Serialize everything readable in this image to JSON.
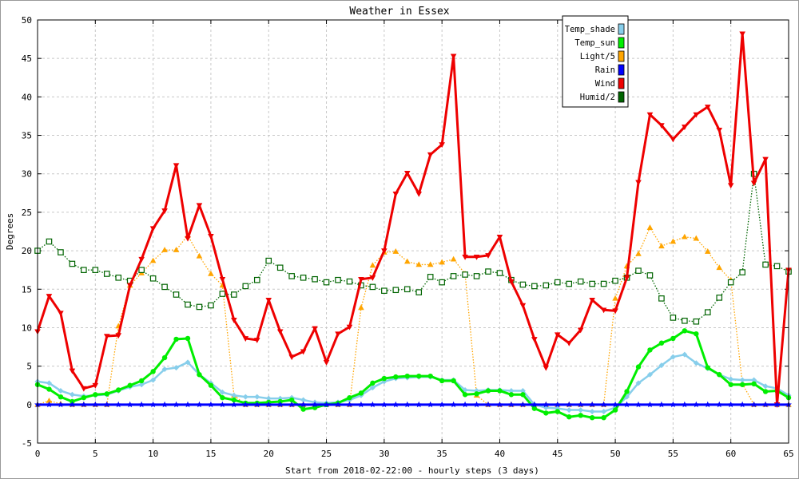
{
  "chart_data": {
    "type": "line",
    "title": "Weather in Essex",
    "xlabel": "Start from 2018-02-22:00 - hourly steps (3 days)",
    "ylabel": "Degrees",
    "xlim": [
      0,
      65
    ],
    "ylim": [
      -5,
      50
    ],
    "xticks": [
      0,
      5,
      10,
      15,
      20,
      25,
      30,
      35,
      40,
      45,
      50,
      55,
      60,
      65
    ],
    "yticks": [
      -5,
      0,
      5,
      10,
      15,
      20,
      25,
      30,
      35,
      40,
      45,
      50
    ],
    "grid": true,
    "legend_position": "top-right",
    "series": [
      {
        "name": "Temp_shade",
        "color": "#87ceeb",
        "line_style": "solid",
        "marker": "diamond",
        "values": [
          3.0,
          2.8,
          1.8,
          1.3,
          1.1,
          1.2,
          1.3,
          1.8,
          2.3,
          2.6,
          3.2,
          4.6,
          4.8,
          5.5,
          3.9,
          2.8,
          1.6,
          1.2,
          1.0,
          1.0,
          0.8,
          0.8,
          0.9,
          0.6,
          0.3,
          0.2,
          0.3,
          0.6,
          1.2,
          2.2,
          3.0,
          3.4,
          3.5,
          3.6,
          3.6,
          3.2,
          3.2,
          1.9,
          1.8,
          1.9,
          1.9,
          1.8,
          1.8,
          0.0,
          -0.4,
          -0.5,
          -0.7,
          -0.7,
          -0.9,
          -0.9,
          -0.4,
          1.0,
          2.8,
          3.9,
          5.1,
          6.2,
          6.5,
          5.4,
          4.7,
          3.9,
          3.3,
          3.2,
          3.2,
          2.4,
          2.1,
          1.2
        ]
      },
      {
        "name": "Temp_sun",
        "color": "#00ee00",
        "line_style": "solid",
        "marker": "circle",
        "values": [
          2.6,
          2.0,
          1.0,
          0.4,
          0.9,
          1.3,
          1.4,
          1.9,
          2.5,
          3.1,
          4.3,
          6.1,
          8.5,
          8.6,
          3.9,
          2.5,
          0.9,
          0.6,
          0.2,
          0.2,
          0.3,
          0.4,
          0.6,
          -0.6,
          -0.4,
          0.0,
          0.2,
          0.9,
          1.5,
          2.8,
          3.4,
          3.6,
          3.7,
          3.7,
          3.7,
          3.1,
          3.1,
          1.3,
          1.4,
          1.8,
          1.8,
          1.3,
          1.3,
          -0.5,
          -1.1,
          -0.9,
          -1.6,
          -1.4,
          -1.7,
          -1.7,
          -0.7,
          1.7,
          4.9,
          7.1,
          8.0,
          8.6,
          9.6,
          9.2,
          4.8,
          3.9,
          2.6,
          2.6,
          2.7,
          1.7,
          1.8,
          0.9
        ]
      },
      {
        "name": "Light/5",
        "color": "#ffa500",
        "line_style": "dotted",
        "marker": "triangle-up",
        "values": [
          0.0,
          0.5,
          0.1,
          0.0,
          0.0,
          0.0,
          0.0,
          10.2,
          15.5,
          17.1,
          18.7,
          20.1,
          20.1,
          22.0,
          19.3,
          17.0,
          15.5,
          1.2,
          0.0,
          0.0,
          0.0,
          0.0,
          0.0,
          0.0,
          0.0,
          0.0,
          0.0,
          0.0,
          12.6,
          18.1,
          19.8,
          19.9,
          18.6,
          18.2,
          18.2,
          18.5,
          18.9,
          17.0,
          1.2,
          0.0,
          0.0,
          0.0,
          0.0,
          0.0,
          0.0,
          0.0,
          0.0,
          0.0,
          0.0,
          0.0,
          13.8,
          18.0,
          19.6,
          23.0,
          20.6,
          21.2,
          21.8,
          21.6,
          19.9,
          17.8,
          16.2,
          2.7,
          0.0,
          0.0,
          0.0,
          0.0
        ]
      },
      {
        "name": "Rain",
        "color": "#0000ff",
        "line_style": "solid",
        "marker": "star",
        "values": [
          0.0,
          0.0,
          0.0,
          0.0,
          0.0,
          0.0,
          0.0,
          0.0,
          0.0,
          0.0,
          0.0,
          0.0,
          0.0,
          0.0,
          0.0,
          0.0,
          0.0,
          0.0,
          0.0,
          0.0,
          0.0,
          0.0,
          0.0,
          0.0,
          0.0,
          0.0,
          0.0,
          0.0,
          0.0,
          0.0,
          0.0,
          0.0,
          0.0,
          0.0,
          0.0,
          0.0,
          0.0,
          0.0,
          0.0,
          0.0,
          0.0,
          0.0,
          0.0,
          0.0,
          0.0,
          0.0,
          0.0,
          0.0,
          0.0,
          0.0,
          0.0,
          0.0,
          0.0,
          0.0,
          0.0,
          0.0,
          0.0,
          0.0,
          0.0,
          0.0,
          0.0,
          0.0,
          0.0,
          0.0,
          0.0,
          0.0
        ]
      },
      {
        "name": "Wind",
        "color": "#ee0000",
        "line_style": "solid",
        "marker": "triangle-down",
        "values": [
          9.5,
          14.1,
          11.9,
          4.4,
          2.1,
          2.5,
          8.9,
          9.0,
          15.5,
          18.9,
          22.9,
          25.2,
          31.1,
          21.6,
          25.9,
          21.9,
          16.3,
          11.0,
          8.6,
          8.4,
          13.6,
          9.5,
          6.2,
          6.9,
          9.9,
          5.5,
          9.2,
          10.1,
          16.3,
          16.5,
          20.0,
          27.4,
          30.1,
          27.4,
          32.5,
          33.8,
          45.3,
          19.2,
          19.2,
          19.4,
          21.8,
          16.0,
          12.9,
          8.5,
          4.8,
          9.1,
          8.0,
          9.7,
          13.6,
          12.3,
          12.2,
          16.5,
          28.9,
          37.7,
          36.3,
          34.5,
          36.1,
          37.7,
          38.7,
          35.7,
          28.5,
          48.2,
          28.8,
          31.9,
          0.0,
          17.5
        ]
      },
      {
        "name": "Humid/2",
        "color": "#006400",
        "line_style": "dotted",
        "marker": "square",
        "values": [
          20.0,
          21.2,
          19.8,
          18.3,
          17.5,
          17.5,
          17.0,
          16.5,
          16.1,
          17.5,
          16.4,
          15.3,
          14.3,
          13.0,
          12.7,
          12.9,
          14.4,
          14.3,
          15.4,
          16.2,
          18.7,
          17.8,
          16.7,
          16.5,
          16.3,
          15.9,
          16.2,
          16.0,
          15.5,
          15.3,
          14.8,
          14.9,
          15.0,
          14.6,
          16.6,
          15.9,
          16.7,
          16.9,
          16.7,
          17.3,
          17.1,
          16.2,
          15.6,
          15.4,
          15.5,
          15.9,
          15.7,
          16.0,
          15.7,
          15.7,
          16.1,
          16.5,
          17.4,
          16.8,
          13.8,
          11.3,
          10.9,
          10.8,
          12.0,
          13.9,
          15.9,
          17.2,
          30.0,
          18.2,
          18.0,
          17.3
        ]
      }
    ]
  }
}
